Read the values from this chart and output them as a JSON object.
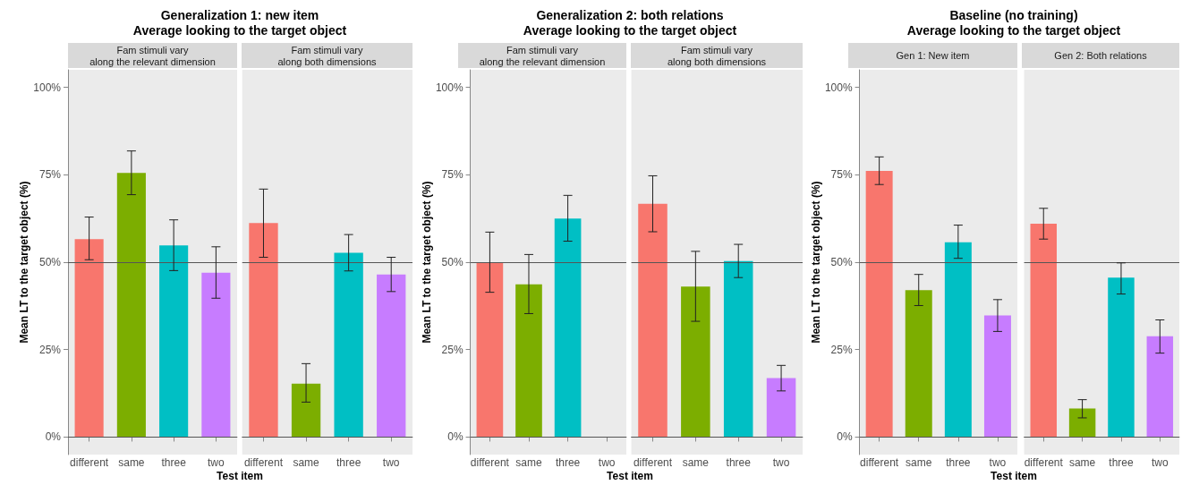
{
  "chart_data": [
    {
      "type": "bar",
      "title": "Generalization 1: new item\nAverage looking to the target object",
      "subtitle": "Fam stimuli vary\nalong the relevant dimension",
      "xlabel": "Test item",
      "ylabel": "Mean LT to the target object (%)",
      "categories": [
        "different",
        "same",
        "three",
        "two"
      ],
      "values": [
        56.6,
        75.5,
        54.8,
        47.0
      ],
      "errors": [
        [
          50.7,
          62.9
        ],
        [
          69.3,
          81.8
        ],
        [
          47.6,
          62.1
        ],
        [
          39.7,
          54.4
        ]
      ],
      "colors": [
        "#f8766d",
        "#7cae00",
        "#00bfc4",
        "#c77cff"
      ],
      "ylim": [
        -5,
        105
      ],
      "yticks": [
        {
          "value": 0,
          "label": "0%"
        },
        {
          "value": 25,
          "label": "25%"
        },
        {
          "value": 50,
          "label": "50%"
        },
        {
          "value": 75,
          "label": "75%"
        },
        {
          "value": 100,
          "label": "100%"
        }
      ],
      "ref_lines": [
        {
          "axis": "y",
          "value": 0
        },
        {
          "axis": "y",
          "value": 50
        }
      ]
    },
    {
      "type": "bar",
      "subtitle": "Fam stimuli vary\nalong both dimensions",
      "categories": [
        "different",
        "same",
        "three",
        "two"
      ],
      "values": [
        61.2,
        15.3,
        52.7,
        46.5
      ],
      "errors": [
        [
          51.4,
          70.9
        ],
        [
          10.0,
          21.0
        ],
        [
          47.5,
          57.9
        ],
        [
          41.6,
          51.4
        ]
      ],
      "colors": [
        "#f8766d",
        "#7cae00",
        "#00bfc4",
        "#c77cff"
      ],
      "ylim": [
        -5,
        105
      ],
      "tick_labels": "x",
      "ref_lines": [
        {
          "axis": "y",
          "value": 0
        },
        {
          "axis": "y",
          "value": 50
        }
      ]
    },
    {
      "type": "bar",
      "title": "Generalization 2: both relations\nAverage looking to the target object",
      "subtitle": "Fam stimuli vary\nalong the relevant dimension",
      "xlabel": "Test item",
      "ylabel": "Mean LT to the target object (%)",
      "categories": [
        "different",
        "same",
        "three",
        "two"
      ],
      "values": [
        49.9,
        43.7,
        62.5,
        null
      ],
      "errors": [
        [
          41.4,
          58.6
        ],
        [
          35.3,
          52.2
        ],
        [
          56.0,
          69.1
        ],
        null
      ],
      "colors": [
        "#f8766d",
        "#7cae00",
        "#00bfc4",
        "#c77cff"
      ],
      "ylim": [
        -5,
        105
      ],
      "yticks": [
        {
          "value": 0,
          "label": "0%"
        },
        {
          "value": 25,
          "label": "25%"
        },
        {
          "value": 50,
          "label": "50%"
        },
        {
          "value": 75,
          "label": "75%"
        },
        {
          "value": 100,
          "label": "100%"
        }
      ],
      "ref_lines": [
        {
          "axis": "y",
          "value": 0
        },
        {
          "axis": "y",
          "value": 50
        }
      ]
    },
    {
      "type": "bar",
      "subtitle": "Fam stimuli vary\nalong both dimensions",
      "categories": [
        "different",
        "same",
        "three",
        "two"
      ],
      "values": [
        66.7,
        43.0,
        50.3,
        16.9
      ],
      "errors": [
        [
          58.7,
          74.7
        ],
        [
          33.1,
          53.1
        ],
        [
          45.6,
          55.1
        ],
        [
          13.2,
          20.5
        ]
      ],
      "colors": [
        "#f8766d",
        "#7cae00",
        "#00bfc4",
        "#c77cff"
      ],
      "ylim": [
        -5,
        105
      ],
      "tick_labels": "x",
      "ref_lines": [
        {
          "axis": "y",
          "value": 0
        },
        {
          "axis": "y",
          "value": 50
        }
      ]
    },
    {
      "type": "bar",
      "title": "Baseline (no training)\nAverage looking to the target object",
      "subtitle": "Gen 1: New item",
      "xlabel": "Test item",
      "ylabel": "Mean LT to the target object (%)",
      "categories": [
        "different",
        "same",
        "three",
        "two"
      ],
      "values": [
        76.1,
        42.0,
        55.7,
        34.8
      ],
      "errors": [
        [
          72.2,
          80.1
        ],
        [
          37.6,
          46.5
        ],
        [
          51.1,
          60.6
        ],
        [
          30.2,
          39.3
        ]
      ],
      "colors": [
        "#f8766d",
        "#7cae00",
        "#00bfc4",
        "#c77cff"
      ],
      "ylim": [
        -5,
        105
      ],
      "yticks": [
        {
          "value": 0,
          "label": "0%"
        },
        {
          "value": 25,
          "label": "25%"
        },
        {
          "value": 50,
          "label": "50%"
        },
        {
          "value": 75,
          "label": "75%"
        },
        {
          "value": 100,
          "label": "100%"
        }
      ],
      "ref_lines": [
        {
          "axis": "y",
          "value": 0
        },
        {
          "axis": "y",
          "value": 50
        }
      ]
    },
    {
      "type": "bar",
      "subtitle": "Gen 2: Both relations",
      "categories": [
        "different",
        "same",
        "three",
        "two"
      ],
      "values": [
        61.0,
        8.2,
        45.6,
        28.8
      ],
      "errors": [
        [
          56.6,
          65.4
        ],
        [
          5.5,
          10.7
        ],
        [
          40.9,
          49.8
        ],
        [
          24.0,
          33.5
        ]
      ],
      "colors": [
        "#f8766d",
        "#7cae00",
        "#00bfc4",
        "#c77cff"
      ],
      "ylim": [
        -5,
        105
      ],
      "tick_labels": "x",
      "ref_lines": [
        {
          "axis": "y",
          "value": 0
        },
        {
          "axis": "y",
          "value": 50
        }
      ]
    }
  ]
}
